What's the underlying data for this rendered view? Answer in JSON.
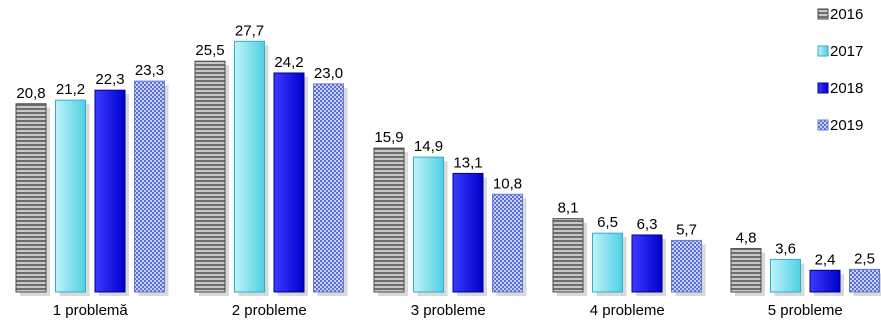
{
  "chart_data": {
    "type": "bar",
    "title": "",
    "xlabel": "",
    "ylabel": "",
    "ylim": [
      0,
      30
    ],
    "grid": false,
    "legend_position": "top-right",
    "categories": [
      "1 problemă",
      "2 probleme",
      "3 probleme",
      "4 probleme",
      "5 probleme"
    ],
    "series": [
      {
        "name": "2016",
        "values": [
          "20,8",
          "25,5",
          "15,9",
          "8,1",
          "4,8"
        ],
        "color": "#8c8c8c",
        "pattern": "horizontal-stripes"
      },
      {
        "name": "2017",
        "values": [
          "21,2",
          "27,7",
          "14,9",
          "6,5",
          "3,6"
        ],
        "color": "#66d9e8",
        "pattern": "solid"
      },
      {
        "name": "2018",
        "values": [
          "22,3",
          "24,2",
          "13,1",
          "6,3",
          "2,4"
        ],
        "color": "#0000ee",
        "pattern": "solid"
      },
      {
        "name": "2019",
        "values": [
          "23,3",
          "23,0",
          "10,8",
          "5,7",
          "2,5"
        ],
        "color": "#8fa0e8",
        "pattern": "dots"
      }
    ]
  }
}
